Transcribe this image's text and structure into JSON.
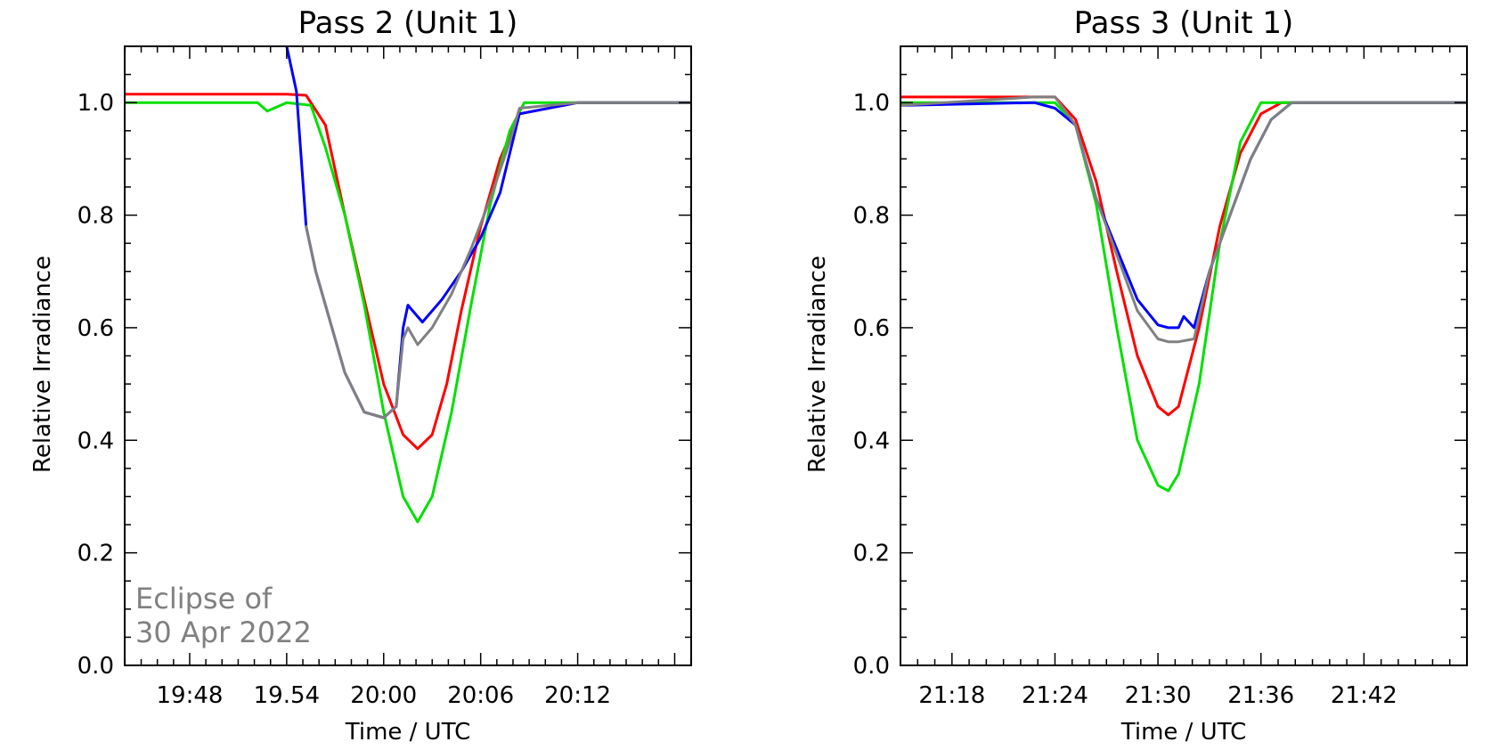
{
  "colors": {
    "red": "#ff0000",
    "green": "#00e000",
    "blue": "#0000ff",
    "gray": "#808080"
  },
  "chart_data": [
    {
      "type": "line",
      "title": "Pass 2 (Unit 1)",
      "xlabel": "Time / UTC",
      "ylabel": "Relative Irradiance",
      "ylim": [
        0.0,
        1.1
      ],
      "xlim": [
        19.733,
        20.317
      ],
      "xticks": [
        19.8,
        19.9,
        20.0,
        20.1,
        20.2
      ],
      "xtick_labels": [
        "19:48",
        "19.54",
        "20:00",
        "20:06",
        "20:12"
      ],
      "yticks": [
        0.0,
        0.2,
        0.4,
        0.6,
        0.8,
        1.0
      ],
      "ytick_labels": [
        "0.0",
        "0.2",
        "0.4",
        "0.6",
        "0.8",
        "1.0"
      ],
      "annotation": [
        "Eclipse of",
        "30 Apr 2022"
      ],
      "series": [
        {
          "color": "red",
          "x": [
            19.733,
            19.84,
            19.88,
            19.9,
            19.92,
            19.94,
            19.95,
            19.96,
            19.98,
            20.0,
            20.02,
            20.035,
            20.05,
            20.065,
            20.08,
            20.1,
            20.12,
            20.14,
            20.2,
            20.317
          ],
          "y": [
            1.015,
            1.015,
            1.015,
            1.015,
            1.013,
            0.96,
            0.88,
            0.8,
            0.65,
            0.5,
            0.41,
            0.385,
            0.41,
            0.5,
            0.63,
            0.78,
            0.9,
            0.98,
            1.0,
            1.0
          ]
        },
        {
          "color": "green",
          "x": [
            19.733,
            19.84,
            19.87,
            19.88,
            19.9,
            19.925,
            19.94,
            19.96,
            19.98,
            20.0,
            20.02,
            20.035,
            20.05,
            20.07,
            20.09,
            20.11,
            20.13,
            20.145,
            20.2,
            20.317
          ],
          "y": [
            1.0,
            1.0,
            1.0,
            0.985,
            1.0,
            0.995,
            0.92,
            0.8,
            0.64,
            0.45,
            0.3,
            0.255,
            0.3,
            0.45,
            0.64,
            0.82,
            0.95,
            1.0,
            1.0,
            1.0
          ]
        },
        {
          "color": "blue",
          "x": [
            19.9,
            19.91,
            19.92,
            19.93,
            19.94,
            19.96,
            19.98,
            20.0,
            20.013,
            20.02,
            20.025,
            20.03,
            20.04,
            20.06,
            20.08,
            20.1,
            20.12,
            20.14,
            20.2,
            20.317
          ],
          "y": [
            1.1,
            1.02,
            0.78,
            0.7,
            0.64,
            0.52,
            0.45,
            0.44,
            0.46,
            0.6,
            0.64,
            0.63,
            0.61,
            0.65,
            0.7,
            0.76,
            0.84,
            0.98,
            1.0,
            1.0
          ]
        },
        {
          "color": "gray",
          "x": [
            19.92,
            19.93,
            19.94,
            19.96,
            19.98,
            20.0,
            20.013,
            20.02,
            20.025,
            20.035,
            20.05,
            20.07,
            20.09,
            20.11,
            20.13,
            20.14,
            20.2,
            20.317
          ],
          "y": [
            0.78,
            0.7,
            0.64,
            0.52,
            0.45,
            0.44,
            0.46,
            0.58,
            0.6,
            0.57,
            0.6,
            0.66,
            0.74,
            0.83,
            0.93,
            0.99,
            1.0,
            1.0
          ]
        }
      ]
    },
    {
      "type": "line",
      "title": "Pass 3 (Unit 1)",
      "xlabel": "Time / UTC",
      "ylabel": "Relative Irradiance",
      "ylim": [
        0.0,
        1.1
      ],
      "xlim": [
        21.25,
        21.8
      ],
      "xticks": [
        21.3,
        21.4,
        21.5,
        21.6,
        21.7
      ],
      "xtick_labels": [
        "21:18",
        "21:24",
        "21:30",
        "21:36",
        "21:42"
      ],
      "yticks": [
        0.0,
        0.2,
        0.4,
        0.6,
        0.8,
        1.0
      ],
      "ytick_labels": [
        "0.0",
        "0.2",
        "0.4",
        "0.6",
        "0.8",
        "1.0"
      ],
      "series": [
        {
          "color": "red",
          "x": [
            21.25,
            21.38,
            21.4,
            21.42,
            21.44,
            21.46,
            21.48,
            21.5,
            21.51,
            21.52,
            21.54,
            21.56,
            21.58,
            21.6,
            21.62,
            21.8
          ],
          "y": [
            1.01,
            1.01,
            1.01,
            0.97,
            0.86,
            0.7,
            0.55,
            0.46,
            0.445,
            0.46,
            0.6,
            0.78,
            0.91,
            0.98,
            1.0,
            1.0
          ]
        },
        {
          "color": "green",
          "x": [
            21.25,
            21.38,
            21.4,
            21.42,
            21.44,
            21.46,
            21.48,
            21.5,
            21.51,
            21.52,
            21.54,
            21.56,
            21.58,
            21.6,
            21.8
          ],
          "y": [
            1.0,
            1.0,
            1.0,
            0.96,
            0.82,
            0.6,
            0.4,
            0.32,
            0.31,
            0.34,
            0.5,
            0.75,
            0.93,
            1.0,
            1.0
          ]
        },
        {
          "color": "blue",
          "x": [
            21.25,
            21.38,
            21.4,
            21.42,
            21.44,
            21.46,
            21.48,
            21.5,
            21.51,
            21.52,
            21.525,
            21.535,
            21.55,
            21.57,
            21.59,
            21.61,
            21.63,
            21.8
          ],
          "y": [
            0.995,
            1.0,
            0.99,
            0.96,
            0.83,
            0.74,
            0.65,
            0.605,
            0.6,
            0.6,
            0.62,
            0.6,
            0.7,
            0.8,
            0.9,
            0.97,
            1.0,
            1.0
          ]
        },
        {
          "color": "gray",
          "x": [
            21.25,
            21.38,
            21.4,
            21.42,
            21.44,
            21.46,
            21.48,
            21.5,
            21.51,
            21.52,
            21.535,
            21.55,
            21.57,
            21.59,
            21.61,
            21.63,
            21.8
          ],
          "y": [
            0.995,
            1.01,
            1.01,
            0.96,
            0.83,
            0.73,
            0.63,
            0.58,
            0.575,
            0.575,
            0.58,
            0.7,
            0.8,
            0.9,
            0.97,
            1.0,
            1.0
          ]
        }
      ]
    }
  ]
}
